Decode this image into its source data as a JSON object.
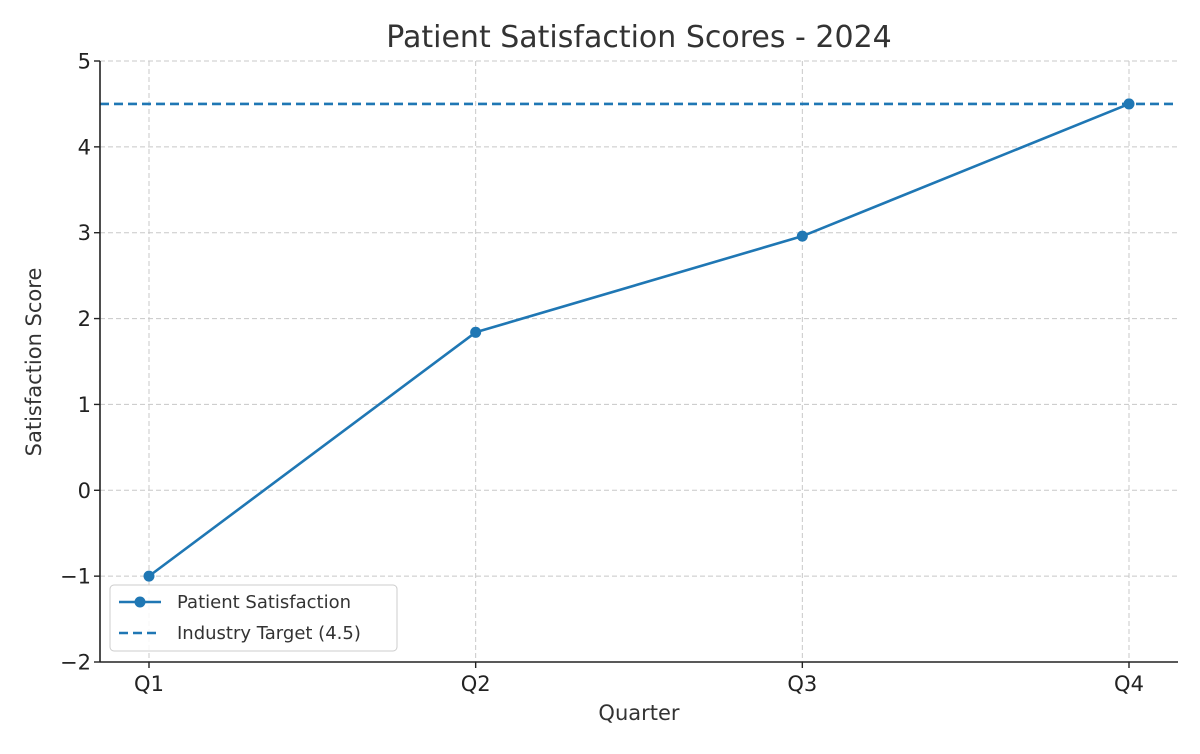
{
  "chart_data": {
    "type": "line",
    "title": "Patient Satisfaction Scores - 2024",
    "xlabel": "Quarter",
    "ylabel": "Satisfaction Score",
    "categories": [
      "Q1",
      "Q2",
      "Q3",
      "Q4"
    ],
    "ylim": [
      -2,
      5
    ],
    "yticks": [
      -2,
      -1,
      0,
      1,
      2,
      3,
      4,
      5
    ],
    "ytick_labels": [
      "−2",
      "−1",
      "0",
      "1",
      "2",
      "3",
      "4",
      "5"
    ],
    "grid": true,
    "legend_position": "lower-left",
    "series": [
      {
        "name": "Patient Satisfaction",
        "values": [
          -1.0,
          1.84,
          2.96,
          4.5
        ],
        "color": "#1f77b4",
        "style": "solid",
        "marker": "circle"
      }
    ],
    "reference_lines": [
      {
        "name": "Industry Target (4.5)",
        "y": 4.5,
        "color": "#1f77b4",
        "style": "dashed"
      }
    ]
  }
}
